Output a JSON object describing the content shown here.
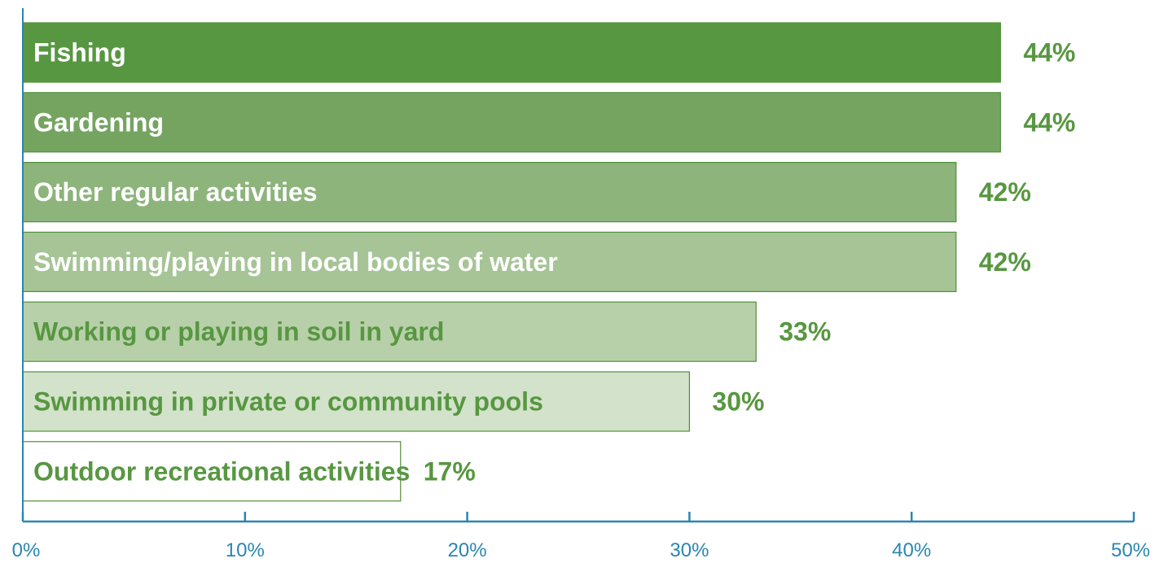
{
  "chart_data": {
    "type": "bar",
    "orientation": "horizontal",
    "title": "",
    "xlabel": "",
    "ylabel": "",
    "xlim": [
      0,
      50
    ],
    "categories": [
      "Fishing",
      "Gardening",
      "Other regular activities",
      "Swimming/playing in local bodies of water",
      "Working or playing in soil in yard",
      "Swimming in private or community pools",
      "Outdoor recreational activities"
    ],
    "values": [
      44,
      44,
      42,
      42,
      33,
      30,
      17
    ],
    "value_labels": [
      "44%",
      "44%",
      "42%",
      "42%",
      "33%",
      "30%",
      "17%"
    ],
    "x_ticks": [
      0,
      10,
      20,
      30,
      40,
      50
    ],
    "x_tick_labels": [
      "0%",
      "10%",
      "20%",
      "30%",
      "40%",
      "50%"
    ],
    "grid": false,
    "legend": "none"
  },
  "colors": {
    "bar_fills": [
      "#579741",
      "#75a461",
      "#8db47b",
      "#a6c496",
      "#b8d0aa",
      "#d3e2ca",
      "#ffffff"
    ],
    "bar_label_colors": [
      "#ffffff",
      "#ffffff",
      "#ffffff",
      "#ffffff",
      "#579741",
      "#579741",
      "#579741"
    ],
    "bar_border": "#4f8f3a",
    "value_label_color": "#579741",
    "axis_color": "#2a86b0",
    "tick_label_color": "#2a86b0"
  }
}
